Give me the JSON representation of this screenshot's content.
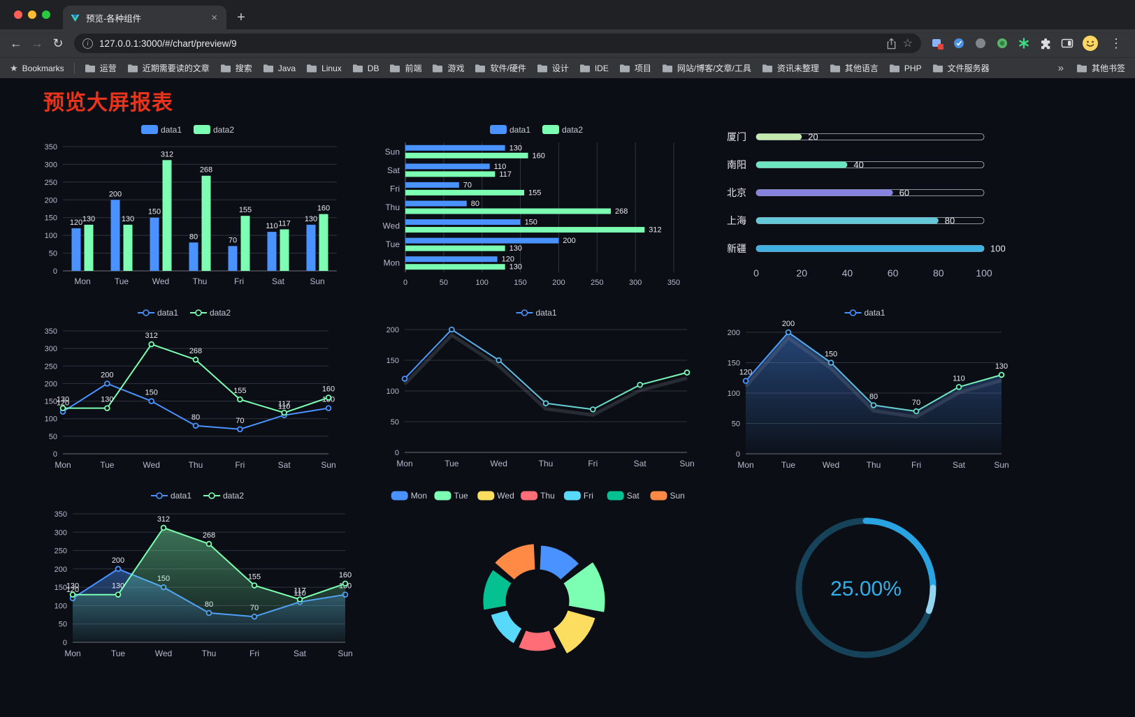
{
  "browser": {
    "tab_title": "预览-各种组件",
    "url": "127.0.0.1:3000/#/chart/preview/9",
    "bookmarks_label": "Bookmarks",
    "bookmarks": [
      "运营",
      "近期需要读的文章",
      "搜索",
      "Java",
      "Linux",
      "DB",
      "前端",
      "游戏",
      "软件/硬件",
      "设计",
      "IDE",
      "项目",
      "网站/博客/文章/工具",
      "资讯未整理",
      "其他语言",
      "PHP",
      "文件服务器"
    ],
    "bookmarks_overflow": "»",
    "other_bookmarks_label": "其他书签"
  },
  "icons": {
    "back": "←",
    "forward": "→",
    "reload": "↻",
    "new_tab": "+",
    "tab_close": "×",
    "bookmark_star": "☆",
    "bookmarks_bar_star": "★",
    "menu": "⋮"
  },
  "page": {
    "title": "预览大屏报表",
    "title_color": "#e8331d",
    "background": "#0b0e14"
  },
  "colors": {
    "background": "#0b0e14",
    "axis_text": "#b9b8ce",
    "axis_line": "#6e7079",
    "grid_line": "#31343d",
    "value_label": "#e8eaf0",
    "legend_text": "#c9cbd6",
    "series_blue": "#4992ff",
    "series_green": "#7cffb2",
    "title_red": "#e8331d",
    "progress_track_border": "#b9bec7"
  },
  "chart_data": [
    {
      "id": "bar-vertical",
      "type": "bar",
      "categories": [
        "Mon",
        "Tue",
        "Wed",
        "Thu",
        "Fri",
        "Sat",
        "Sun"
      ],
      "series": [
        {
          "name": "data1",
          "color": "#4992ff",
          "values": [
            120,
            200,
            150,
            80,
            70,
            110,
            130
          ]
        },
        {
          "name": "data2",
          "color": "#7cffb2",
          "values": [
            130,
            130,
            312,
            268,
            155,
            117,
            160
          ]
        }
      ],
      "ylim": [
        0,
        350
      ],
      "ystep": 50,
      "grid": true,
      "legend_position": "top",
      "labels": true
    },
    {
      "id": "bar-horizontal",
      "type": "bar-horizontal",
      "categories": [
        "Mon",
        "Tue",
        "Wed",
        "Thu",
        "Fri",
        "Sat",
        "Sun"
      ],
      "series": [
        {
          "name": "data1",
          "color": "#4992ff",
          "values": [
            120,
            200,
            150,
            80,
            70,
            110,
            130
          ]
        },
        {
          "name": "data2",
          "color": "#7cffb2",
          "values": [
            130,
            130,
            312,
            268,
            155,
            117,
            160
          ]
        }
      ],
      "xlim": [
        0,
        350
      ],
      "xstep": 50,
      "grid": true,
      "legend_position": "top",
      "labels": true
    },
    {
      "id": "progress-bars",
      "type": "bar-horizontal-progress",
      "items": [
        {
          "label": "厦门",
          "value": 20,
          "color": "#c4ebad"
        },
        {
          "label": "南阳",
          "value": 40,
          "color": "#6be6c1"
        },
        {
          "label": "北京",
          "value": 60,
          "color": "#8582e0"
        },
        {
          "label": "上海",
          "value": 80,
          "color": "#63c8d8"
        },
        {
          "label": "新疆",
          "value": 100,
          "color": "#3fb1e3"
        }
      ],
      "xlim": [
        0,
        100
      ],
      "xticks": [
        0,
        20,
        40,
        60,
        80,
        100
      ]
    },
    {
      "id": "line-two-series",
      "type": "line",
      "categories": [
        "Mon",
        "Tue",
        "Wed",
        "Thu",
        "Fri",
        "Sat",
        "Sun"
      ],
      "series": [
        {
          "name": "data1",
          "color": "#4992ff",
          "values": [
            120,
            200,
            150,
            80,
            70,
            110,
            130
          ]
        },
        {
          "name": "data2",
          "color": "#7cffb2",
          "values": [
            130,
            130,
            312,
            268,
            155,
            117,
            160
          ]
        }
      ],
      "ylim": [
        0,
        350
      ],
      "ystep": 50,
      "labels": true,
      "legend_position": "top"
    },
    {
      "id": "line-gradient",
      "type": "line",
      "categories": [
        "Mon",
        "Tue",
        "Wed",
        "Thu",
        "Fri",
        "Sat",
        "Sun"
      ],
      "series": [
        {
          "name": "data1",
          "color": "#4992ff",
          "color_end": "#7cffb2",
          "gradient": true,
          "shadow": true,
          "values": [
            120,
            200,
            150,
            80,
            70,
            110,
            130
          ]
        }
      ],
      "ylim": [
        0,
        200
      ],
      "ystep": 50,
      "labels": false,
      "legend_position": "top"
    },
    {
      "id": "line-area-single",
      "type": "area",
      "categories": [
        "Mon",
        "Tue",
        "Wed",
        "Thu",
        "Fri",
        "Sat",
        "Sun"
      ],
      "series": [
        {
          "name": "data1",
          "color": "#4992ff",
          "color_end": "#7cffb2",
          "gradient": true,
          "shadow": true,
          "area": true,
          "values": [
            120,
            200,
            150,
            80,
            70,
            110,
            130
          ]
        }
      ],
      "ylim": [
        0,
        200
      ],
      "ystep": 50,
      "labels": true,
      "legend_position": "top"
    },
    {
      "id": "line-area-two",
      "type": "area",
      "categories": [
        "Mon",
        "Tue",
        "Wed",
        "Thu",
        "Fri",
        "Sat",
        "Sun"
      ],
      "series": [
        {
          "name": "data1",
          "color": "#4992ff",
          "area": true,
          "values": [
            120,
            200,
            150,
            80,
            70,
            110,
            130
          ]
        },
        {
          "name": "data2",
          "color": "#7cffb2",
          "area": true,
          "values": [
            130,
            130,
            312,
            268,
            155,
            117,
            160
          ]
        }
      ],
      "ylim": [
        0,
        350
      ],
      "ystep": 50,
      "labels": true,
      "legend_position": "top"
    },
    {
      "id": "pie-rose",
      "type": "pie",
      "rose": true,
      "inner_radius": 44,
      "slices": [
        {
          "name": "Mon",
          "value": 120,
          "color": "#4992ff"
        },
        {
          "name": "Tue",
          "value": 200,
          "color": "#7cffb2"
        },
        {
          "name": "Wed",
          "value": 150,
          "color": "#fddd60"
        },
        {
          "name": "Thu",
          "value": 80,
          "color": "#ff6e76"
        },
        {
          "name": "Fri",
          "value": 70,
          "color": "#58d9f9"
        },
        {
          "name": "Sat",
          "value": 110,
          "color": "#05c091"
        },
        {
          "name": "Sun",
          "value": 130,
          "color": "#ff8a45"
        }
      ],
      "legend_position": "top"
    },
    {
      "id": "gauge-progress",
      "type": "gauge",
      "value": 25,
      "max": 100,
      "label": "25.00%",
      "arc_color": "#2aa3e3",
      "tip_color": "#93d5f0",
      "track_color": "#16425a",
      "text_color": "#2fb0e8"
    }
  ]
}
